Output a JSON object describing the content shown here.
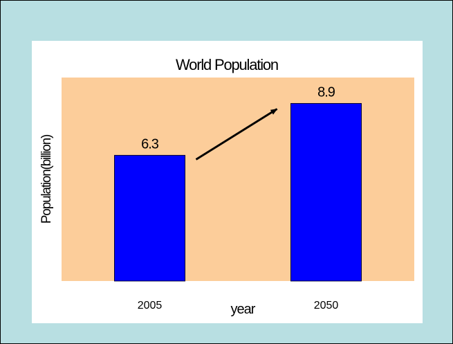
{
  "colors": {
    "frame_background": "#b8dfe2",
    "plot_background": "#fccd9a",
    "bar_fill": "#0000ff",
    "bar_outline": "#000033",
    "arrow": "#000000"
  },
  "chart_data": {
    "type": "bar",
    "title": "World Population",
    "xlabel": "year",
    "ylabel": "Population(billion)",
    "categories": [
      "2005",
      "2050"
    ],
    "values": [
      6.3,
      8.9
    ],
    "data_labels": [
      "6.3",
      "8.9"
    ],
    "ylim": [
      0,
      10.2
    ],
    "grid": false,
    "legend": "none",
    "annotations": [
      {
        "type": "arrow",
        "from_category": "2005",
        "to_category": "2050",
        "direction": "up-right"
      }
    ]
  }
}
